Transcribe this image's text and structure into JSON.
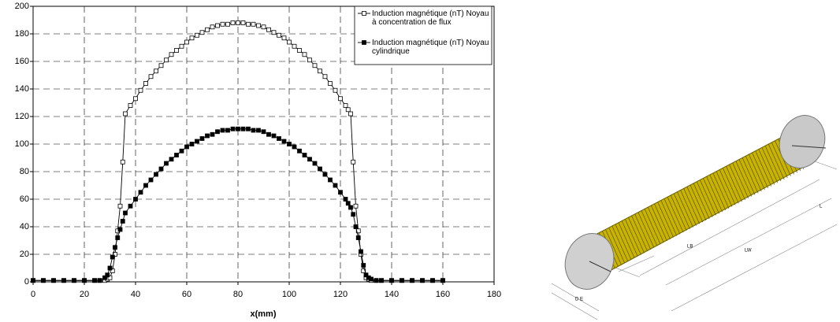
{
  "chart_data": {
    "type": "line",
    "xlabel": "x(mm)",
    "x": [
      0,
      4,
      8,
      12,
      16,
      20,
      24,
      26,
      28,
      29,
      30,
      31,
      32,
      33,
      34,
      35,
      36,
      38,
      40,
      42,
      44,
      46,
      48,
      50,
      52,
      54,
      56,
      58,
      60,
      62,
      64,
      66,
      68,
      70,
      72,
      74,
      76,
      78,
      80,
      82,
      84,
      86,
      88,
      90,
      92,
      94,
      96,
      98,
      100,
      102,
      104,
      106,
      108,
      110,
      112,
      114,
      116,
      118,
      120,
      122,
      123,
      124,
      125,
      126,
      127,
      128,
      129,
      130,
      131,
      132,
      134,
      136,
      140,
      144,
      148,
      152,
      156,
      160
    ],
    "series": [
      {
        "name": "Induction magnétique (nT) Noyau à concentration de flux",
        "color": "#000000",
        "marker": "open-square",
        "values": [
          1,
          1,
          1,
          1,
          1,
          1,
          1,
          1,
          1,
          2,
          3,
          8,
          20,
          37,
          55,
          87,
          122,
          128,
          133,
          139,
          144,
          149,
          153,
          157,
          161,
          165,
          168,
          171,
          174,
          177,
          179,
          181,
          183,
          185,
          186,
          187,
          187,
          188,
          188,
          188,
          187,
          187,
          186,
          185,
          183,
          181,
          179,
          177,
          174,
          171,
          168,
          165,
          161,
          157,
          153,
          149,
          144,
          139,
          133,
          128,
          125,
          122,
          87,
          55,
          37,
          20,
          8,
          3,
          2,
          1,
          1,
          1,
          1,
          1,
          1,
          1,
          1,
          1
        ]
      },
      {
        "name": "Induction magnétique (nT) Noyau cylindrique",
        "color": "#000000",
        "marker": "filled-square",
        "values": [
          1,
          1,
          1,
          1,
          1,
          1,
          1,
          1,
          3,
          5,
          10,
          18,
          25,
          32,
          38,
          44,
          50,
          55,
          60,
          65,
          70,
          74,
          78,
          82,
          86,
          89,
          92,
          95,
          98,
          100,
          102,
          104,
          106,
          107,
          109,
          110,
          110,
          111,
          111,
          111,
          111,
          110,
          110,
          109,
          107,
          106,
          104,
          102,
          100,
          98,
          95,
          92,
          89,
          86,
          82,
          78,
          74,
          70,
          65,
          60,
          57,
          54,
          49,
          40,
          32,
          22,
          12,
          5,
          3,
          2,
          1,
          1,
          1,
          1,
          1,
          1,
          1,
          1
        ]
      }
    ],
    "xlim": [
      0,
      180
    ],
    "xticks": [
      0,
      20,
      40,
      60,
      80,
      100,
      120,
      140,
      160,
      180
    ],
    "ylim": [
      0,
      200
    ],
    "yticks": [
      0,
      20,
      40,
      60,
      80,
      100,
      120,
      140,
      160,
      180,
      200
    ],
    "grid": true,
    "legend": "top-right"
  },
  "illustration": {
    "labels": [
      "LB",
      "LW",
      "L",
      "D E"
    ]
  }
}
